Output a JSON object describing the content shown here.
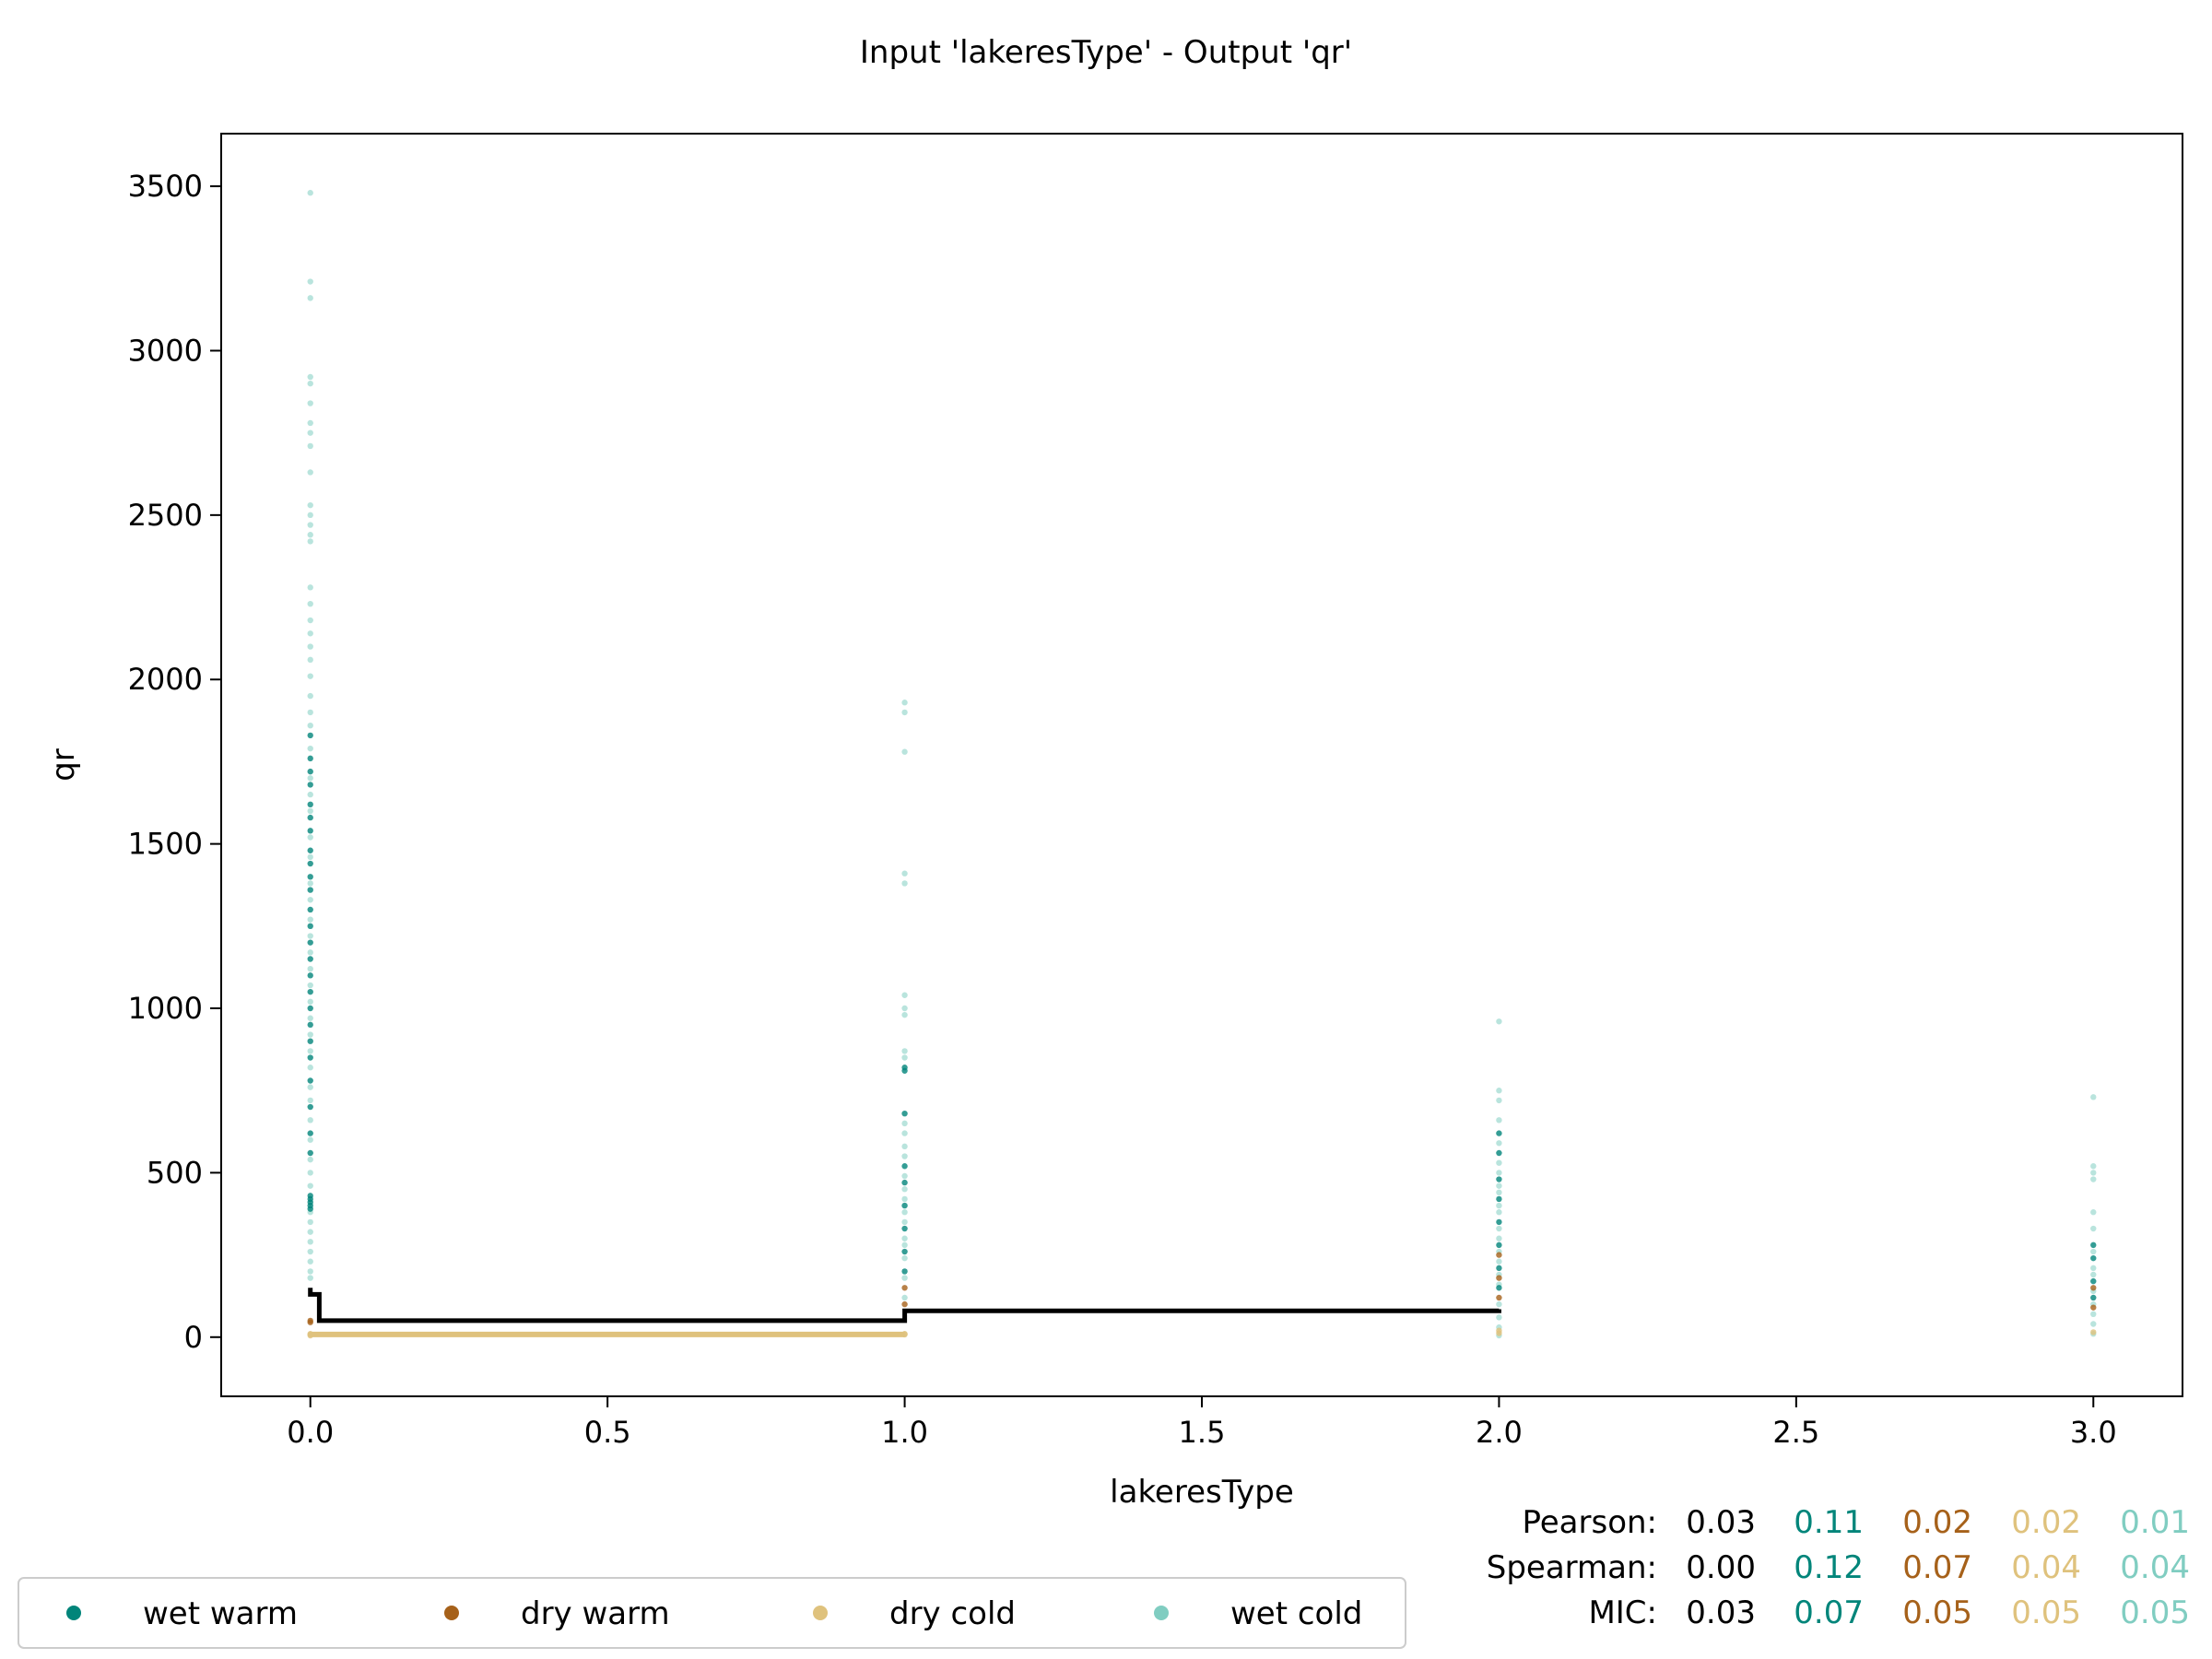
{
  "chart_data": {
    "type": "scatter",
    "title": "Input 'lakeresType' - Output 'qr'",
    "xlabel": "lakeresType",
    "ylabel": "qr",
    "xlim": [
      -0.15,
      3.15
    ],
    "ylim": [
      -180,
      3660
    ],
    "x_ticks": [
      0.0,
      0.5,
      1.0,
      1.5,
      2.0,
      2.5,
      3.0
    ],
    "x_tick_labels": [
      "0.0",
      "0.5",
      "1.0",
      "1.5",
      "2.0",
      "2.5",
      "3.0"
    ],
    "y_ticks": [
      0,
      500,
      1000,
      1500,
      2000,
      2500,
      3000,
      3500
    ],
    "y_tick_labels": [
      "0",
      "500",
      "1000",
      "1500",
      "2000",
      "2500",
      "3000",
      "3500"
    ],
    "grid": false,
    "legend_position": "bottom-left",
    "series": [
      {
        "name": "wet warm",
        "color": "#01857a",
        "points": [
          {
            "x": 0,
            "y": 1830
          },
          {
            "x": 0,
            "y": 1760
          },
          {
            "x": 0,
            "y": 1720
          },
          {
            "x": 0,
            "y": 1680
          },
          {
            "x": 0,
            "y": 1620
          },
          {
            "x": 0,
            "y": 1580
          },
          {
            "x": 0,
            "y": 1540
          },
          {
            "x": 0,
            "y": 1480
          },
          {
            "x": 0,
            "y": 1440
          },
          {
            "x": 0,
            "y": 1400
          },
          {
            "x": 0,
            "y": 1360
          },
          {
            "x": 0,
            "y": 1300
          },
          {
            "x": 0,
            "y": 1250
          },
          {
            "x": 0,
            "y": 1200
          },
          {
            "x": 0,
            "y": 1150
          },
          {
            "x": 0,
            "y": 1100
          },
          {
            "x": 0,
            "y": 1050
          },
          {
            "x": 0,
            "y": 1000
          },
          {
            "x": 0,
            "y": 950
          },
          {
            "x": 0,
            "y": 900
          },
          {
            "x": 0,
            "y": 850
          },
          {
            "x": 0,
            "y": 780
          },
          {
            "x": 0,
            "y": 700
          },
          {
            "x": 0,
            "y": 620
          },
          {
            "x": 0,
            "y": 560
          },
          {
            "x": 0,
            "y": 430
          },
          {
            "x": 0,
            "y": 420
          },
          {
            "x": 0,
            "y": 410
          },
          {
            "x": 0,
            "y": 400
          },
          {
            "x": 0,
            "y": 390
          },
          {
            "x": 1,
            "y": 820
          },
          {
            "x": 1,
            "y": 810
          },
          {
            "x": 1,
            "y": 680
          },
          {
            "x": 1,
            "y": 520
          },
          {
            "x": 1,
            "y": 470
          },
          {
            "x": 1,
            "y": 400
          },
          {
            "x": 1,
            "y": 330
          },
          {
            "x": 1,
            "y": 260
          },
          {
            "x": 1,
            "y": 200
          },
          {
            "x": 2,
            "y": 620
          },
          {
            "x": 2,
            "y": 560
          },
          {
            "x": 2,
            "y": 480
          },
          {
            "x": 2,
            "y": 420
          },
          {
            "x": 2,
            "y": 350
          },
          {
            "x": 2,
            "y": 280
          },
          {
            "x": 2,
            "y": 210
          },
          {
            "x": 2,
            "y": 150
          },
          {
            "x": 3,
            "y": 280
          },
          {
            "x": 3,
            "y": 240
          },
          {
            "x": 3,
            "y": 170
          },
          {
            "x": 3,
            "y": 120
          }
        ]
      },
      {
        "name": "dry warm",
        "color": "#a6611a",
        "points": [
          {
            "x": 0,
            "y": 50
          },
          {
            "x": 0,
            "y": 45
          },
          {
            "x": 1,
            "y": 150
          },
          {
            "x": 1,
            "y": 100
          },
          {
            "x": 2,
            "y": 250
          },
          {
            "x": 2,
            "y": 180
          },
          {
            "x": 2,
            "y": 120
          },
          {
            "x": 3,
            "y": 150
          },
          {
            "x": 3,
            "y": 90
          }
        ]
      },
      {
        "name": "dry cold",
        "color": "#dfc27d",
        "points": [
          {
            "x": 0,
            "y": 10
          },
          {
            "x": 0,
            "y": 8
          },
          {
            "x": 0,
            "y": 5
          },
          {
            "x": 1,
            "y": 10
          },
          {
            "x": 1,
            "y": 8
          },
          {
            "x": 2,
            "y": 20
          },
          {
            "x": 2,
            "y": 12
          },
          {
            "x": 3,
            "y": 15
          }
        ]
      },
      {
        "name": "wet cold",
        "color": "#80cdc1",
        "points": [
          {
            "x": 0,
            "y": 3480
          },
          {
            "x": 0,
            "y": 3210
          },
          {
            "x": 0,
            "y": 3160
          },
          {
            "x": 0,
            "y": 2920
          },
          {
            "x": 0,
            "y": 2900
          },
          {
            "x": 0,
            "y": 2840
          },
          {
            "x": 0,
            "y": 2780
          },
          {
            "x": 0,
            "y": 2750
          },
          {
            "x": 0,
            "y": 2710
          },
          {
            "x": 0,
            "y": 2630
          },
          {
            "x": 0,
            "y": 2530
          },
          {
            "x": 0,
            "y": 2500
          },
          {
            "x": 0,
            "y": 2470
          },
          {
            "x": 0,
            "y": 2440
          },
          {
            "x": 0,
            "y": 2420
          },
          {
            "x": 0,
            "y": 2280
          },
          {
            "x": 0,
            "y": 2230
          },
          {
            "x": 0,
            "y": 2180
          },
          {
            "x": 0,
            "y": 2140
          },
          {
            "x": 0,
            "y": 2100
          },
          {
            "x": 0,
            "y": 2060
          },
          {
            "x": 0,
            "y": 2010
          },
          {
            "x": 0,
            "y": 1950
          },
          {
            "x": 0,
            "y": 1900
          },
          {
            "x": 0,
            "y": 1860
          },
          {
            "x": 0,
            "y": 1790
          },
          {
            "x": 0,
            "y": 1700
          },
          {
            "x": 0,
            "y": 1650
          },
          {
            "x": 0,
            "y": 1600
          },
          {
            "x": 0,
            "y": 1520
          },
          {
            "x": 0,
            "y": 1460
          },
          {
            "x": 0,
            "y": 1380
          },
          {
            "x": 0,
            "y": 1330
          },
          {
            "x": 0,
            "y": 1270
          },
          {
            "x": 0,
            "y": 1220
          },
          {
            "x": 0,
            "y": 1170
          },
          {
            "x": 0,
            "y": 1120
          },
          {
            "x": 0,
            "y": 1070
          },
          {
            "x": 0,
            "y": 1020
          },
          {
            "x": 0,
            "y": 970
          },
          {
            "x": 0,
            "y": 920
          },
          {
            "x": 0,
            "y": 870
          },
          {
            "x": 0,
            "y": 820
          },
          {
            "x": 0,
            "y": 760
          },
          {
            "x": 0,
            "y": 720
          },
          {
            "x": 0,
            "y": 660
          },
          {
            "x": 0,
            "y": 600
          },
          {
            "x": 0,
            "y": 540
          },
          {
            "x": 0,
            "y": 500
          },
          {
            "x": 0,
            "y": 460
          },
          {
            "x": 0,
            "y": 380
          },
          {
            "x": 0,
            "y": 350
          },
          {
            "x": 0,
            "y": 320
          },
          {
            "x": 0,
            "y": 290
          },
          {
            "x": 0,
            "y": 260
          },
          {
            "x": 0,
            "y": 230
          },
          {
            "x": 0,
            "y": 200
          },
          {
            "x": 0,
            "y": 180
          },
          {
            "x": 1,
            "y": 1930
          },
          {
            "x": 1,
            "y": 1900
          },
          {
            "x": 1,
            "y": 1780
          },
          {
            "x": 1,
            "y": 1410
          },
          {
            "x": 1,
            "y": 1380
          },
          {
            "x": 1,
            "y": 1040
          },
          {
            "x": 1,
            "y": 1000
          },
          {
            "x": 1,
            "y": 980
          },
          {
            "x": 1,
            "y": 870
          },
          {
            "x": 1,
            "y": 850
          },
          {
            "x": 1,
            "y": 650
          },
          {
            "x": 1,
            "y": 620
          },
          {
            "x": 1,
            "y": 580
          },
          {
            "x": 1,
            "y": 550
          },
          {
            "x": 1,
            "y": 490
          },
          {
            "x": 1,
            "y": 450
          },
          {
            "x": 1,
            "y": 420
          },
          {
            "x": 1,
            "y": 380
          },
          {
            "x": 1,
            "y": 350
          },
          {
            "x": 1,
            "y": 300
          },
          {
            "x": 1,
            "y": 280
          },
          {
            "x": 1,
            "y": 240
          },
          {
            "x": 1,
            "y": 180
          },
          {
            "x": 1,
            "y": 120
          },
          {
            "x": 2,
            "y": 960
          },
          {
            "x": 2,
            "y": 750
          },
          {
            "x": 2,
            "y": 720
          },
          {
            "x": 2,
            "y": 660
          },
          {
            "x": 2,
            "y": 590
          },
          {
            "x": 2,
            "y": 530
          },
          {
            "x": 2,
            "y": 500
          },
          {
            "x": 2,
            "y": 460
          },
          {
            "x": 2,
            "y": 440
          },
          {
            "x": 2,
            "y": 400
          },
          {
            "x": 2,
            "y": 380
          },
          {
            "x": 2,
            "y": 330
          },
          {
            "x": 2,
            "y": 300
          },
          {
            "x": 2,
            "y": 260
          },
          {
            "x": 2,
            "y": 230
          },
          {
            "x": 2,
            "y": 190
          },
          {
            "x": 2,
            "y": 160
          },
          {
            "x": 2,
            "y": 100
          },
          {
            "x": 2,
            "y": 60
          },
          {
            "x": 2,
            "y": 30
          },
          {
            "x": 2,
            "y": 5
          },
          {
            "x": 3,
            "y": 730
          },
          {
            "x": 3,
            "y": 520
          },
          {
            "x": 3,
            "y": 500
          },
          {
            "x": 3,
            "y": 480
          },
          {
            "x": 3,
            "y": 380
          },
          {
            "x": 3,
            "y": 330
          },
          {
            "x": 3,
            "y": 260
          },
          {
            "x": 3,
            "y": 210
          },
          {
            "x": 3,
            "y": 190
          },
          {
            "x": 3,
            "y": 140
          },
          {
            "x": 3,
            "y": 100
          },
          {
            "x": 3,
            "y": 70
          },
          {
            "x": 3,
            "y": 40
          },
          {
            "x": 3,
            "y": 10
          }
        ]
      }
    ],
    "lines": [
      {
        "color": "#000000",
        "style": "step",
        "points": [
          {
            "x": 0.0,
            "y": 150
          },
          {
            "x": 0.0,
            "y": 130
          },
          {
            "x": 0.015,
            "y": 130
          },
          {
            "x": 0.015,
            "y": 50
          },
          {
            "x": 1.0,
            "y": 50
          },
          {
            "x": 1.0,
            "y": 80
          },
          {
            "x": 2.0,
            "y": 80
          },
          {
            "x": 2.0,
            "y": 85
          }
        ]
      },
      {
        "color": "#dfc27d",
        "style": "step",
        "points": [
          {
            "x": 0.0,
            "y": 8
          },
          {
            "x": 1.0,
            "y": 8
          }
        ]
      }
    ],
    "stats": [
      {
        "label": "Pearson:",
        "values": [
          "0.03",
          "0.11",
          "0.02",
          "0.02",
          "0.01"
        ]
      },
      {
        "label": "Spearman:",
        "values": [
          "0.00",
          "0.12",
          "0.07",
          "0.04",
          "0.04"
        ]
      },
      {
        "label": "MIC:",
        "values": [
          "0.03",
          "0.07",
          "0.05",
          "0.05",
          "0.05"
        ]
      }
    ],
    "stats_colors": [
      "#000000",
      "#01857a",
      "#a6611a",
      "#dfc27d",
      "#80cdc1"
    ]
  }
}
